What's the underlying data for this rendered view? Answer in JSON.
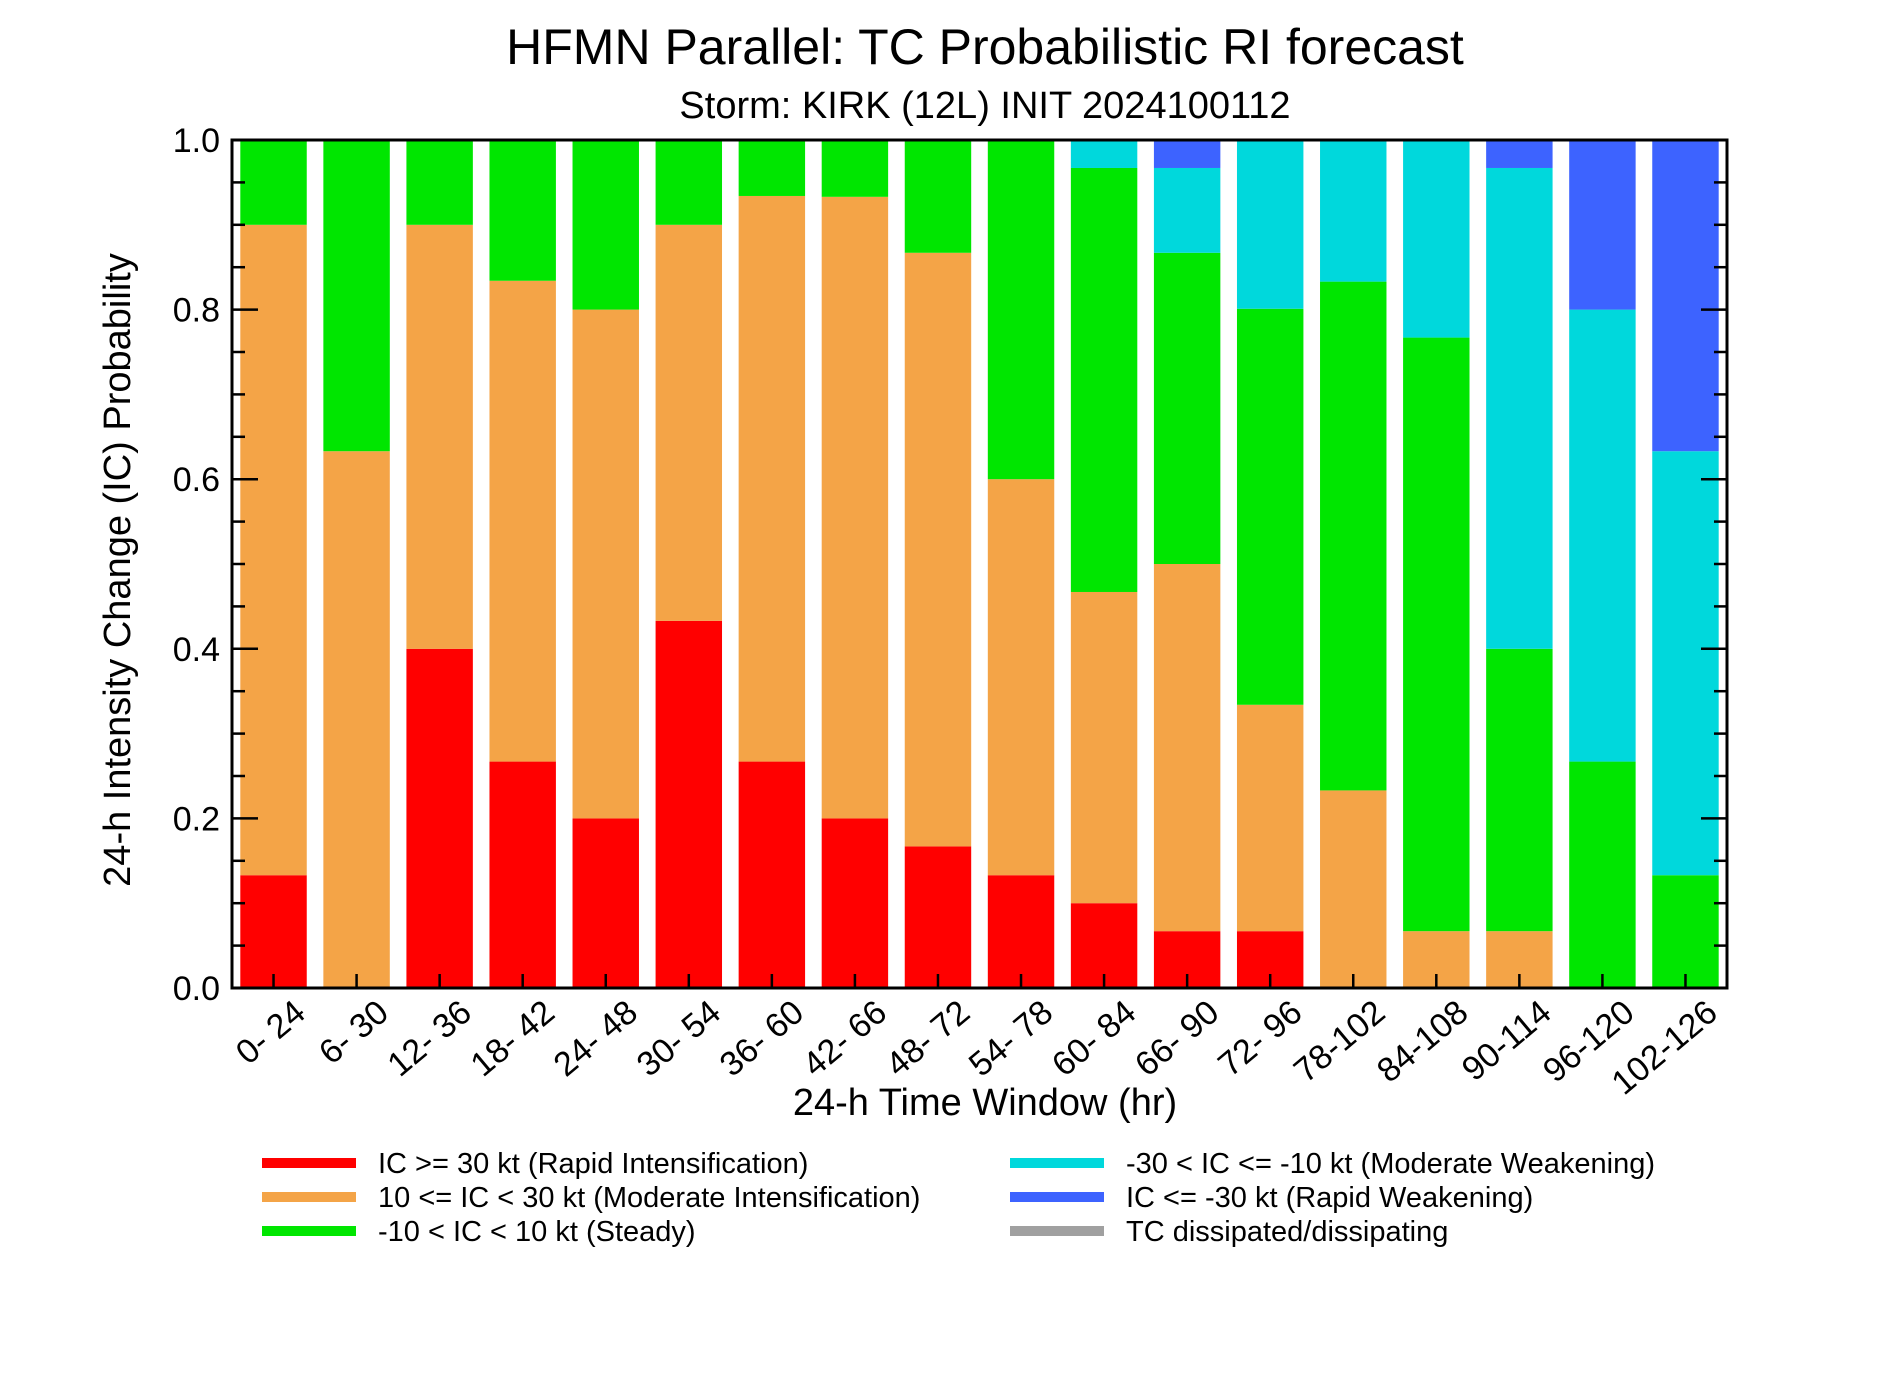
{
  "chart_data": {
    "type": "bar",
    "stacked": true,
    "title": "HFMN Parallel: TC Probabilistic RI forecast",
    "subtitle": "Storm: KIRK (12L) INIT 2024100112",
    "xlabel": "24-h Time Window (hr)",
    "ylabel": "24-h Intensity Change (IC) Probability",
    "ylim": [
      0,
      1
    ],
    "yticks": [
      "0.0",
      "0.2",
      "0.4",
      "0.6",
      "0.8",
      "1.0"
    ],
    "grid": false,
    "legend_position": "bottom",
    "categories": [
      "0- 24",
      "6- 30",
      "12- 36",
      "18- 42",
      "24- 48",
      "30- 54",
      "36- 60",
      "42- 66",
      "48- 72",
      "54- 78",
      "60- 84",
      "66- 90",
      "72- 96",
      "78-102",
      "84-108",
      "90-114",
      "96-120",
      "102-126"
    ],
    "series": [
      {
        "name": "IC >= 30 kt (Rapid Intensification)",
        "color": "#ff0000",
        "values": [
          0.133,
          0,
          0.4,
          0.267,
          0.2,
          0.433,
          0.267,
          0.2,
          0.167,
          0.133,
          0.1,
          0.067,
          0.067,
          0,
          0,
          0,
          0,
          0
        ]
      },
      {
        "name": "10 <= IC < 30 kt (Moderate Intensification)",
        "color": "#f4a447",
        "values": [
          0.767,
          0.633,
          0.5,
          0.567,
          0.6,
          0.467,
          0.667,
          0.733,
          0.7,
          0.467,
          0.367,
          0.433,
          0.267,
          0.233,
          0.067,
          0.067,
          0,
          0
        ]
      },
      {
        "name": "-10 < IC < 10 kt (Steady)",
        "color": "#00e600",
        "values": [
          0.1,
          0.367,
          0.1,
          0.167,
          0.2,
          0.1,
          0.067,
          0.067,
          0.133,
          0.4,
          0.5,
          0.367,
          0.467,
          0.6,
          0.7,
          0.333,
          0.267,
          0.133
        ]
      },
      {
        "name": "-30 < IC <= -10 kt (Moderate Weakening)",
        "color": "#00d8dc",
        "values": [
          0,
          0,
          0,
          0,
          0,
          0,
          0,
          0,
          0,
          0,
          0.033,
          0.1,
          0.2,
          0.167,
          0.233,
          0.567,
          0.533,
          0.5
        ]
      },
      {
        "name": "IC <= -30 kt (Rapid Weakening)",
        "color": "#3d63ff",
        "values": [
          0,
          0,
          0,
          0,
          0,
          0,
          0,
          0,
          0,
          0,
          0,
          0.033,
          0,
          0,
          0,
          0.033,
          0.2,
          0.367
        ]
      },
      {
        "name": "TC dissipated/dissipating",
        "color": "#a0a0a0",
        "values": [
          0,
          0,
          0,
          0,
          0,
          0,
          0,
          0,
          0,
          0,
          0,
          0,
          0,
          0,
          0,
          0,
          0,
          0
        ]
      }
    ]
  }
}
